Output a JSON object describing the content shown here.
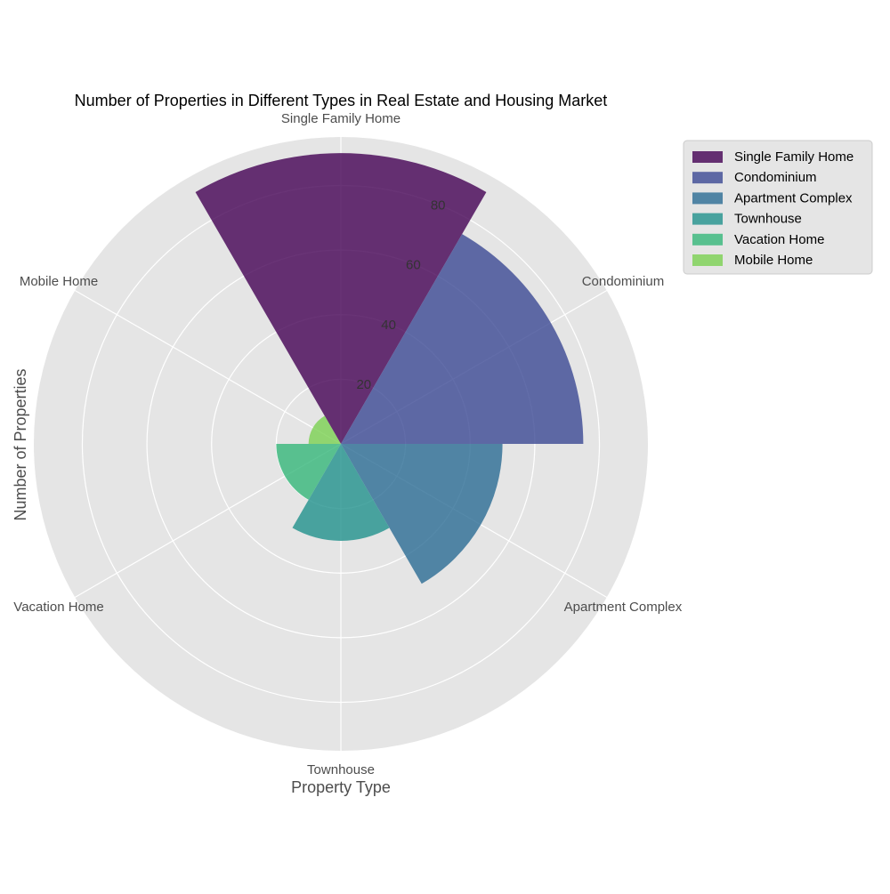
{
  "chart_data": {
    "type": "polar-bar",
    "title": "Number of Properties in Different Types in Real Estate and Housing Market",
    "xlabel": "Property Type",
    "ylabel": "Number of Properties",
    "categories": [
      "Single Family Home",
      "Condominium",
      "Apartment Complex",
      "Townhouse",
      "Vacation Home",
      "Mobile Home"
    ],
    "values": [
      90,
      75,
      50,
      30,
      20,
      10
    ],
    "colors": [
      "#440154",
      "#3b4994",
      "#2a6b94",
      "#21918c",
      "#35b779",
      "#7ad151"
    ],
    "radial_ticks": [
      20,
      40,
      60,
      80
    ],
    "rlim": [
      0,
      95
    ],
    "grid": true,
    "legend": {
      "placement": "top-right, outside",
      "entries": [
        "Single Family Home",
        "Condominium",
        "Apartment Complex",
        "Townhouse",
        "Vacation Home",
        "Mobile Home"
      ]
    }
  }
}
